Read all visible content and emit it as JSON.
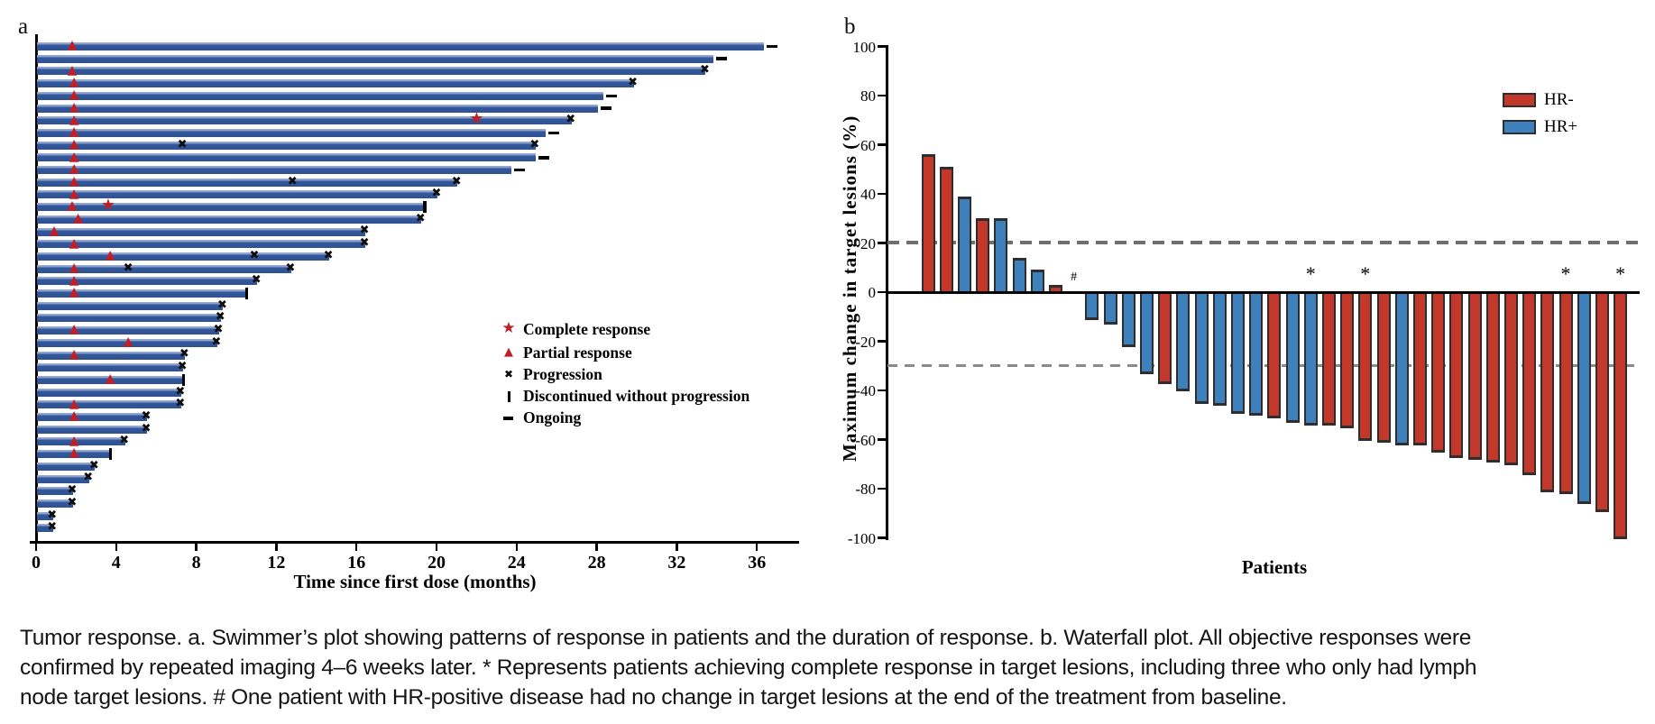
{
  "colors": {
    "swimmer_bar": "#33589c",
    "hr_negative": "#c2392b",
    "hr_positive": "#3d80bb",
    "bar_outline": "#2e2e2e",
    "response_marker_red": "#c01f25",
    "progression_marker_black": "#0d0d0d",
    "reference_dash_gray": "#6f6f6f"
  },
  "chart_data": [
    {
      "type": "swimmer",
      "panel_label": "a",
      "xlabel": "Time since first dose (months)",
      "x_ticks": [
        0,
        4,
        8,
        12,
        16,
        20,
        24,
        28,
        32,
        36
      ],
      "x_max_months": 38,
      "legend": [
        {
          "symbol": "complete-response-star",
          "label": "Complete response"
        },
        {
          "symbol": "partial-response-triangle",
          "label": "Partial response"
        },
        {
          "symbol": "progression-x",
          "label": "Progression"
        },
        {
          "symbol": "discontinued-bar",
          "label": "Discontinued without progression"
        },
        {
          "symbol": "ongoing-dash",
          "label": "Ongoing"
        }
      ],
      "patients": [
        {
          "months": 36.3,
          "end": "ongoing",
          "partial_response": 1.8
        },
        {
          "months": 33.8,
          "end": "ongoing"
        },
        {
          "months": 33.4,
          "end": "progression",
          "partial_response": 1.8
        },
        {
          "months": 29.8,
          "end": "progression",
          "partial_response": 1.9
        },
        {
          "months": 28.3,
          "end": "ongoing",
          "partial_response": 1.9
        },
        {
          "months": 28.0,
          "end": "ongoing",
          "partial_response": 1.9
        },
        {
          "months": 26.7,
          "end": "progression",
          "partial_response": 1.9,
          "complete_response": 22.0
        },
        {
          "months": 25.4,
          "end": "ongoing",
          "partial_response": 1.9
        },
        {
          "months": 24.9,
          "end": "progression",
          "partial_response": 1.9,
          "progression_events": [
            7.3
          ]
        },
        {
          "months": 24.9,
          "end": "ongoing",
          "partial_response": 1.9
        },
        {
          "months": 23.7,
          "end": "ongoing",
          "partial_response": 1.9
        },
        {
          "months": 21.0,
          "end": "progression",
          "partial_response": 1.9,
          "progression_events": [
            12.8
          ]
        },
        {
          "months": 20.0,
          "end": "progression",
          "partial_response": 1.9
        },
        {
          "months": 19.3,
          "end": "discontinued",
          "partial_response": 1.8,
          "complete_response": 3.6
        },
        {
          "months": 19.2,
          "end": "progression",
          "partial_response": 2.1
        },
        {
          "months": 16.4,
          "end": "progression",
          "partial_response": 0.9
        },
        {
          "months": 16.4,
          "end": "progression",
          "partial_response": 1.9
        },
        {
          "months": 14.6,
          "end": "progression",
          "partial_response": 3.7,
          "progression_events": [
            10.9
          ]
        },
        {
          "months": 12.7,
          "end": "progression",
          "partial_response": 1.9,
          "progression_events": [
            4.6
          ]
        },
        {
          "months": 11.0,
          "end": "progression",
          "partial_response": 1.9
        },
        {
          "months": 10.4,
          "end": "discontinued",
          "partial_response": 1.9
        },
        {
          "months": 9.3,
          "end": "progression"
        },
        {
          "months": 9.2,
          "end": "progression"
        },
        {
          "months": 9.1,
          "end": "progression",
          "partial_response": 1.9
        },
        {
          "months": 9.0,
          "end": "progression",
          "partial_response": 4.6
        },
        {
          "months": 7.4,
          "end": "progression",
          "partial_response": 1.9
        },
        {
          "months": 7.3,
          "end": "progression"
        },
        {
          "months": 7.25,
          "end": "discontinued",
          "partial_response": 3.7
        },
        {
          "months": 7.2,
          "end": "progression"
        },
        {
          "months": 7.2,
          "end": "progression",
          "partial_response": 1.9
        },
        {
          "months": 5.5,
          "end": "progression",
          "partial_response": 1.9
        },
        {
          "months": 5.5,
          "end": "progression"
        },
        {
          "months": 4.4,
          "end": "progression",
          "partial_response": 1.9
        },
        {
          "months": 3.6,
          "end": "discontinued",
          "partial_response": 1.9
        },
        {
          "months": 2.9,
          "end": "progression"
        },
        {
          "months": 2.6,
          "end": "progression"
        },
        {
          "months": 1.8,
          "end": "progression"
        },
        {
          "months": 1.8,
          "end": "progression"
        },
        {
          "months": 0.8,
          "end": "progression"
        },
        {
          "months": 0.8,
          "end": "progression"
        }
      ]
    },
    {
      "type": "waterfall",
      "panel_label": "b",
      "ylabel": "Maximum change in target lesions (%)",
      "xlabel": "Patients",
      "ylim": [
        -100,
        100
      ],
      "y_ticks": [
        100,
        80,
        60,
        40,
        20,
        0,
        -20,
        -40,
        -60,
        -80,
        -100
      ],
      "reference_lines": [
        20,
        -30
      ],
      "legend": [
        {
          "label": "HR-",
          "color": "#c2392b"
        },
        {
          "label": "HR+",
          "color": "#3d80bb"
        }
      ],
      "patients": [
        {
          "value": 56,
          "hr": "HR-"
        },
        {
          "value": 51,
          "hr": "HR-"
        },
        {
          "value": 39,
          "hr": "HR+"
        },
        {
          "value": 30,
          "hr": "HR-"
        },
        {
          "value": 30,
          "hr": "HR+"
        },
        {
          "value": 14,
          "hr": "HR+"
        },
        {
          "value": 9,
          "hr": "HR+"
        },
        {
          "value": 3,
          "hr": "HR-"
        },
        {
          "value": 0,
          "hr": "HR+",
          "annotation": "#"
        },
        {
          "value": -11,
          "hr": "HR+"
        },
        {
          "value": -13,
          "hr": "HR+"
        },
        {
          "value": -22,
          "hr": "HR+"
        },
        {
          "value": -33,
          "hr": "HR+"
        },
        {
          "value": -37,
          "hr": "HR-"
        },
        {
          "value": -40,
          "hr": "HR+"
        },
        {
          "value": -45,
          "hr": "HR+"
        },
        {
          "value": -46,
          "hr": "HR+"
        },
        {
          "value": -49,
          "hr": "HR+"
        },
        {
          "value": -50,
          "hr": "HR+"
        },
        {
          "value": -51,
          "hr": "HR-"
        },
        {
          "value": -53,
          "hr": "HR+"
        },
        {
          "value": -54,
          "hr": "HR+",
          "annotation": "*"
        },
        {
          "value": -54,
          "hr": "HR-"
        },
        {
          "value": -55,
          "hr": "HR-"
        },
        {
          "value": -60,
          "hr": "HR-",
          "annotation": "*"
        },
        {
          "value": -61,
          "hr": "HR-"
        },
        {
          "value": -62,
          "hr": "HR+"
        },
        {
          "value": -62,
          "hr": "HR-"
        },
        {
          "value": -65,
          "hr": "HR-"
        },
        {
          "value": -67,
          "hr": "HR-"
        },
        {
          "value": -68,
          "hr": "HR-"
        },
        {
          "value": -69,
          "hr": "HR-"
        },
        {
          "value": -70,
          "hr": "HR-"
        },
        {
          "value": -74,
          "hr": "HR-"
        },
        {
          "value": -81,
          "hr": "HR-"
        },
        {
          "value": -82,
          "hr": "HR-",
          "annotation": "*"
        },
        {
          "value": -86,
          "hr": "HR+"
        },
        {
          "value": -89,
          "hr": "HR-"
        },
        {
          "value": -100,
          "hr": "HR-",
          "annotation": "*"
        }
      ]
    }
  ],
  "caption": {
    "lines": [
      "Tumor response. a. Swimmer’s plot showing patterns of response in patients and the duration of response. b. Waterfall plot. All objective responses were",
      "confirmed by repeated imaging 4–6 weeks later. * Represents patients achieving complete response in target lesions, including three who only had lymph",
      "node target lesions. # One patient with HR-positive disease had no change in target lesions at the end of the treatment from baseline."
    ]
  }
}
